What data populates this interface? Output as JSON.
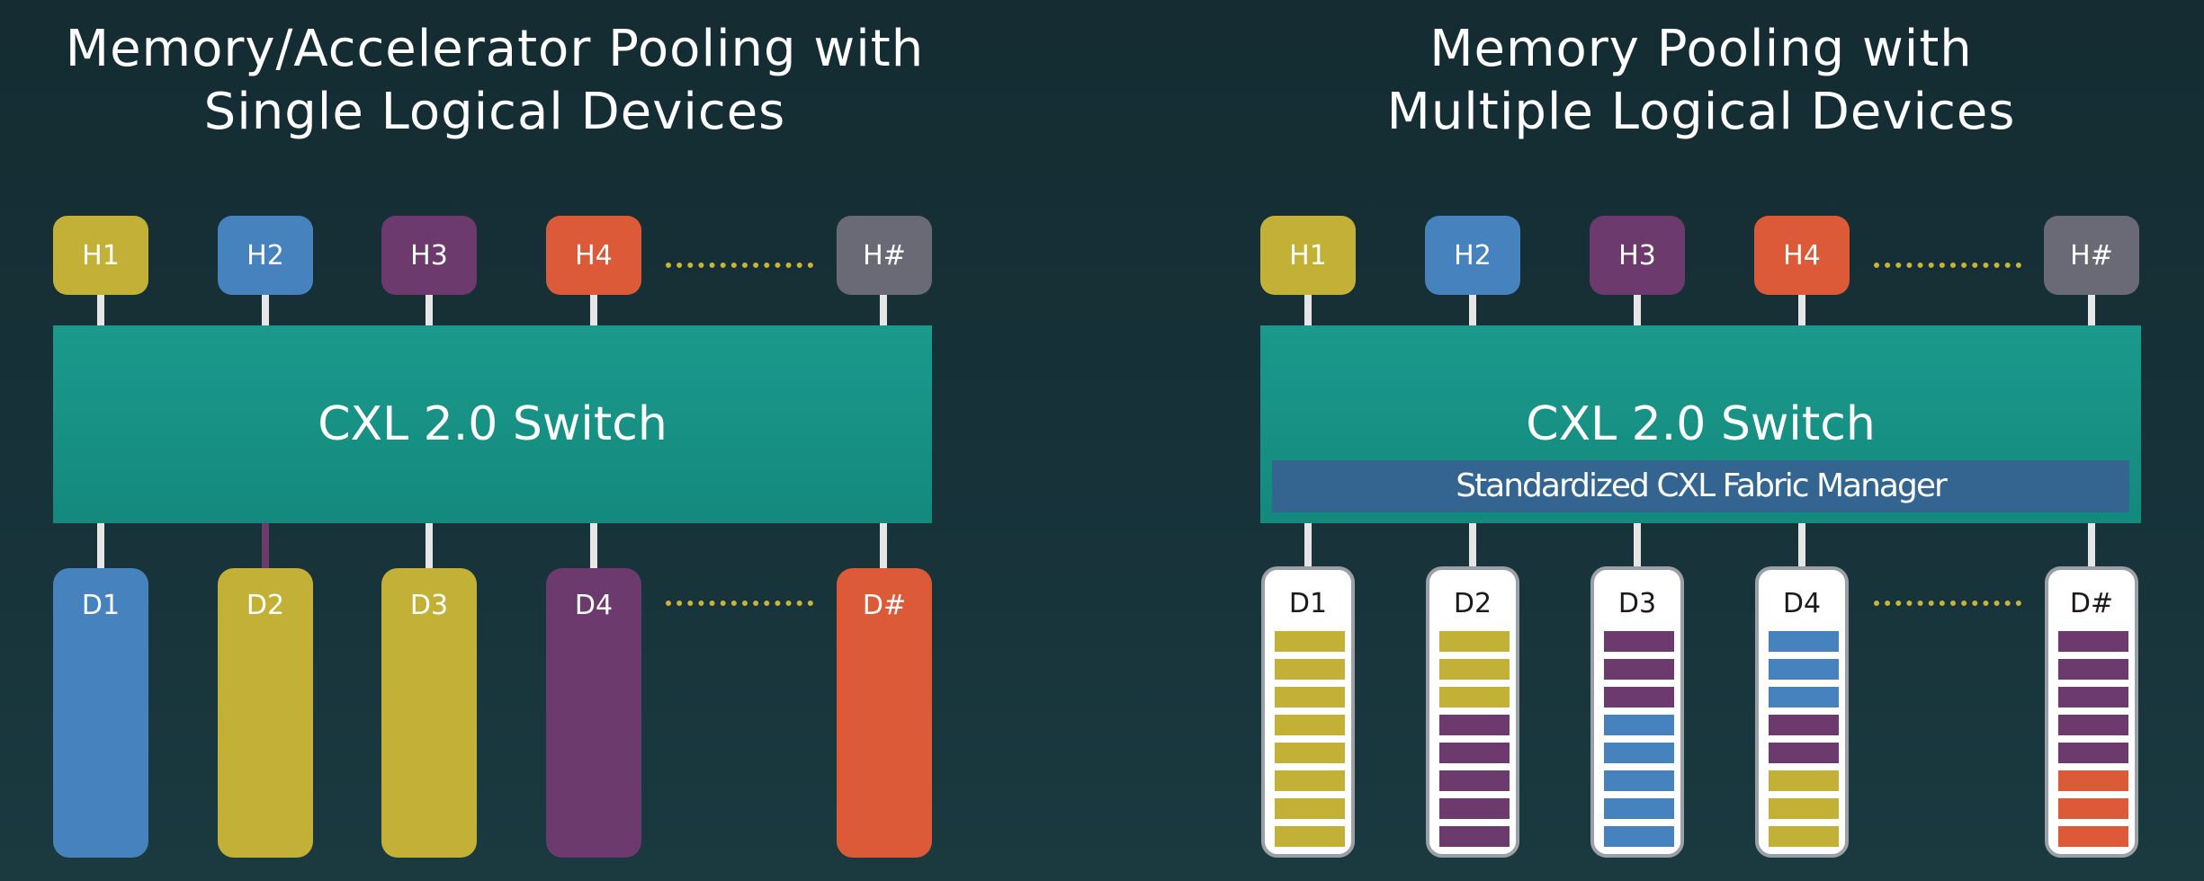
{
  "left": {
    "title_lines": [
      "Memory/Accelerator Pooling with",
      "Single Logical Devices"
    ],
    "hosts": [
      {
        "label": "H1",
        "color": "#c3b036"
      },
      {
        "label": "H2",
        "color": "#4582be"
      },
      {
        "label": "H3",
        "color": "#6c3a6c"
      },
      {
        "label": "H4",
        "color": "#dd5a38"
      },
      {
        "label": "H#",
        "color": "#6a6a76"
      }
    ],
    "switch_label": "CXL 2.0 Switch",
    "devices": [
      {
        "label": "D1",
        "color": "#4582be"
      },
      {
        "label": "D2",
        "color": "#c3b036"
      },
      {
        "label": "D3",
        "color": "#c3b036"
      },
      {
        "label": "D4",
        "color": "#6c3a6c"
      },
      {
        "label": "D#",
        "color": "#dd5a38"
      }
    ]
  },
  "right": {
    "title_lines": [
      "Memory Pooling with",
      "Multiple Logical Devices"
    ],
    "hosts": [
      {
        "label": "H1",
        "color": "#c3b036"
      },
      {
        "label": "H2",
        "color": "#4582be"
      },
      {
        "label": "H3",
        "color": "#6c3a6c"
      },
      {
        "label": "H4",
        "color": "#dd5a38"
      },
      {
        "label": "H#",
        "color": "#6a6a76"
      }
    ],
    "switch_label": "CXL 2.0 Switch",
    "fabric_manager_label": "Standardized CXL Fabric Manager",
    "devices": [
      {
        "label": "D1",
        "slots": [
          "#c3b036",
          "#c3b036",
          "#c3b036",
          "#c3b036",
          "#c3b036",
          "#c3b036",
          "#c3b036",
          "#c3b036"
        ]
      },
      {
        "label": "D2",
        "slots": [
          "#c3b036",
          "#c3b036",
          "#c3b036",
          "#6c3a6c",
          "#6c3a6c",
          "#6c3a6c",
          "#6c3a6c",
          "#6c3a6c"
        ]
      },
      {
        "label": "D3",
        "slots": [
          "#6c3a6c",
          "#6c3a6c",
          "#6c3a6c",
          "#4582be",
          "#4582be",
          "#4582be",
          "#4582be",
          "#4582be"
        ]
      },
      {
        "label": "D4",
        "slots": [
          "#4582be",
          "#4582be",
          "#4582be",
          "#6c3a6c",
          "#6c3a6c",
          "#c3b036",
          "#c3b036",
          "#c3b036"
        ]
      },
      {
        "label": "D#",
        "slots": [
          "#6c3a6c",
          "#6c3a6c",
          "#6c3a6c",
          "#6c3a6c",
          "#6c3a6c",
          "#dd5a38",
          "#dd5a38",
          "#dd5a38"
        ]
      }
    ]
  },
  "colors": {
    "connector": "#e6e6e6",
    "dots": "#c9b43a",
    "switch": "#1a9a8c",
    "fabric_manager": "#336590"
  }
}
